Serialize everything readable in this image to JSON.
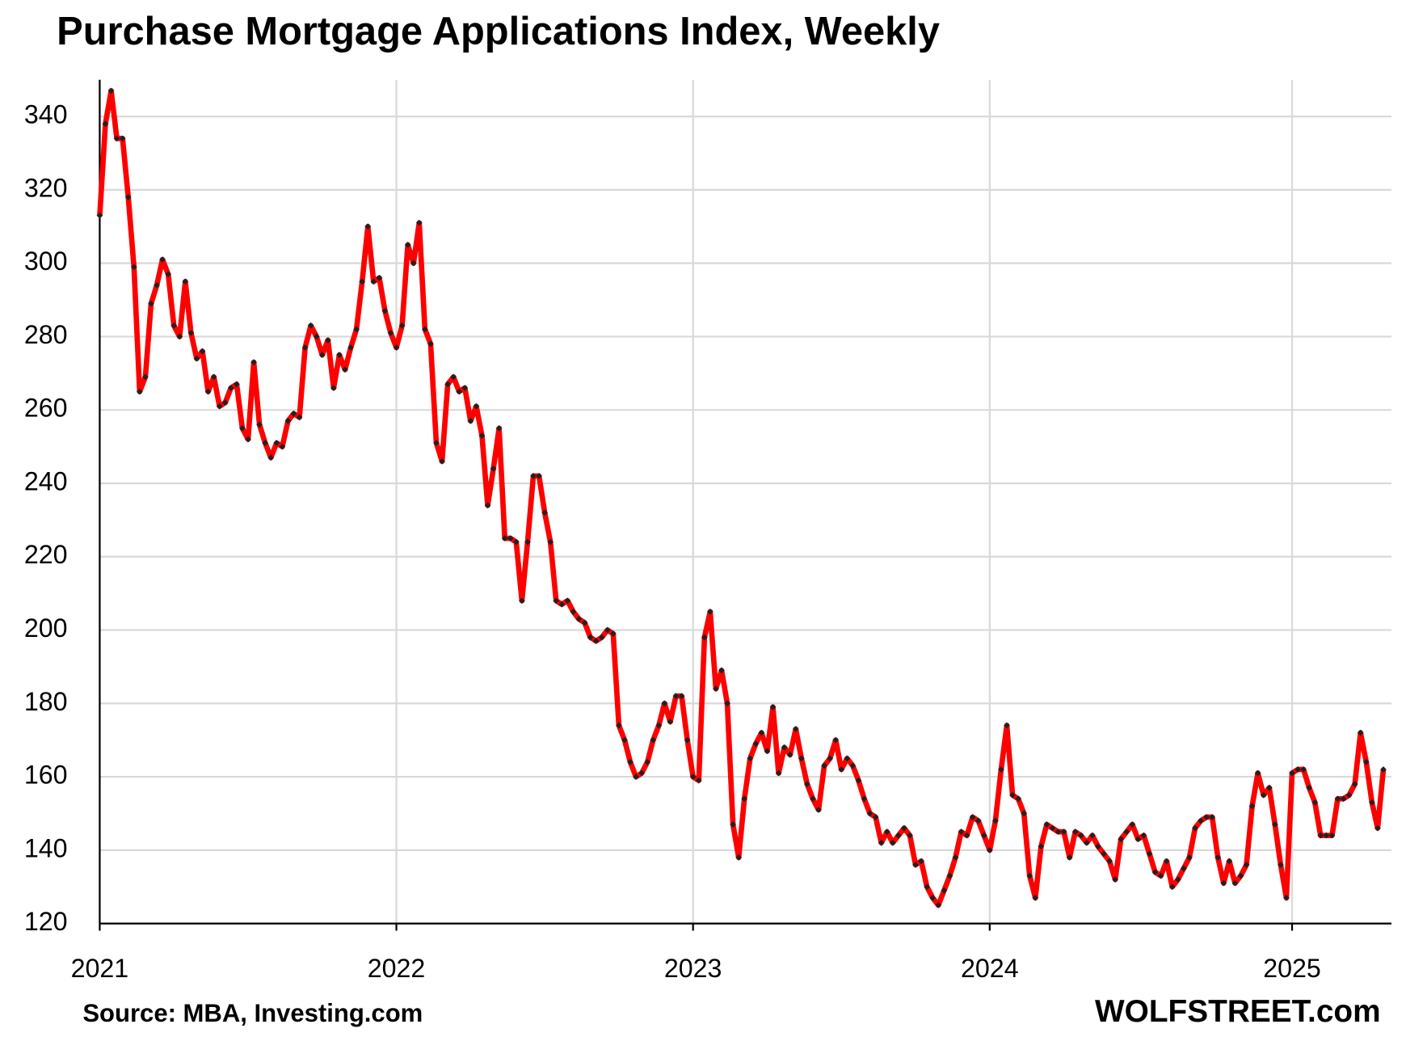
{
  "chart_data": {
    "type": "line",
    "title": "Purchase Mortgage Applications Index, Weekly",
    "source": "Source: MBA, Investing.com",
    "brand": "WOLFSTREET.com",
    "color": "#ff0000",
    "marker_color": "#222222",
    "grid": true,
    "ylim": [
      120,
      350
    ],
    "yticks": [
      120,
      140,
      160,
      180,
      200,
      220,
      240,
      260,
      280,
      300,
      320,
      340
    ],
    "categories": [
      "2021",
      null,
      null,
      null,
      null,
      null,
      null,
      null,
      null,
      null,
      null,
      null,
      null,
      null,
      null,
      null,
      null,
      null,
      null,
      null,
      null,
      null,
      null,
      null,
      null,
      null,
      null,
      null,
      null,
      null,
      null,
      null,
      null,
      null,
      null,
      null,
      null,
      null,
      null,
      null,
      null,
      null,
      null,
      null,
      null,
      null,
      null,
      null,
      null,
      null,
      null,
      null,
      "2022",
      null,
      null,
      null,
      null,
      null,
      null,
      null,
      null,
      null,
      null,
      null,
      null,
      null,
      null,
      null,
      null,
      null,
      null,
      null,
      null,
      null,
      null,
      null,
      null,
      null,
      null,
      null,
      null,
      null,
      null,
      null,
      null,
      null,
      null,
      null,
      null,
      null,
      null,
      null,
      null,
      null,
      null,
      null,
      null,
      null,
      null,
      null,
      null,
      null,
      null,
      null,
      "2023",
      null,
      null,
      null,
      null,
      null,
      null,
      null,
      null,
      null,
      null,
      null,
      null,
      null,
      null,
      null,
      null,
      null,
      null,
      null,
      null,
      null,
      null,
      null,
      null,
      null,
      null,
      null,
      null,
      null,
      null,
      null,
      null,
      null,
      null,
      null,
      null,
      null,
      null,
      null,
      null,
      null,
      null,
      null,
      null,
      null,
      null,
      null,
      null,
      null,
      null,
      null,
      "2024",
      null,
      null,
      null,
      null,
      null,
      null,
      null,
      null,
      null,
      null,
      null,
      null,
      null,
      null,
      null,
      null,
      null,
      null,
      null,
      null,
      null,
      null,
      null,
      null,
      null,
      null,
      null,
      null,
      null,
      null,
      null,
      null,
      null,
      null,
      null,
      null,
      null,
      null,
      null,
      null,
      null,
      null,
      null,
      null,
      null,
      null,
      null,
      null,
      null,
      null,
      null,
      null,
      "2025",
      null,
      null,
      null,
      null,
      null,
      null,
      null,
      null,
      null,
      null,
      null,
      null,
      null,
      null,
      null,
      null
    ],
    "values": [
      313,
      338,
      347,
      334,
      334,
      318,
      299,
      265,
      269,
      289,
      294,
      301,
      297,
      283,
      280,
      295,
      281,
      274,
      276,
      265,
      269,
      261,
      262,
      266,
      267,
      255,
      252,
      273,
      256,
      251,
      247,
      251,
      250,
      257,
      259,
      258,
      277,
      283,
      280,
      275,
      279,
      266,
      275,
      271,
      277,
      282,
      295,
      310,
      295,
      296,
      287,
      281,
      277,
      283,
      305,
      300,
      311,
      282,
      278,
      251,
      246,
      267,
      269,
      265,
      266,
      257,
      261,
      253,
      234,
      244,
      255,
      225,
      225,
      224,
      208,
      224,
      242,
      242,
      232,
      224,
      208,
      207,
      208,
      205,
      203,
      202,
      198,
      197,
      198,
      200,
      199,
      174,
      170,
      164,
      160,
      161,
      164,
      170,
      174,
      180,
      175,
      182,
      182,
      170,
      160,
      159,
      198,
      205,
      184,
      189,
      180,
      147,
      138,
      154,
      165,
      169,
      172,
      167,
      179,
      161,
      168,
      166,
      173,
      165,
      158,
      154,
      151,
      163,
      165,
      170,
      162,
      165,
      163,
      159,
      154,
      150,
      149,
      142,
      145,
      142,
      144,
      146,
      144,
      136,
      137,
      130,
      127,
      125,
      129,
      133,
      138,
      145,
      144,
      149,
      148,
      144,
      140,
      148,
      162,
      174,
      155,
      154,
      150,
      133,
      127,
      141,
      147,
      146,
      145,
      145,
      138,
      145,
      144,
      142,
      144,
      141,
      139,
      137,
      132,
      143,
      145,
      147,
      143,
      144,
      139,
      134,
      133,
      137,
      130,
      132,
      135,
      138,
      146,
      148,
      149,
      149,
      138,
      131,
      137,
      131,
      133,
      136,
      152,
      161,
      155,
      157,
      147,
      136,
      127,
      161,
      162,
      162,
      157,
      153,
      144,
      144,
      144,
      154,
      154,
      155,
      158,
      172,
      164,
      153,
      146,
      162
    ]
  }
}
